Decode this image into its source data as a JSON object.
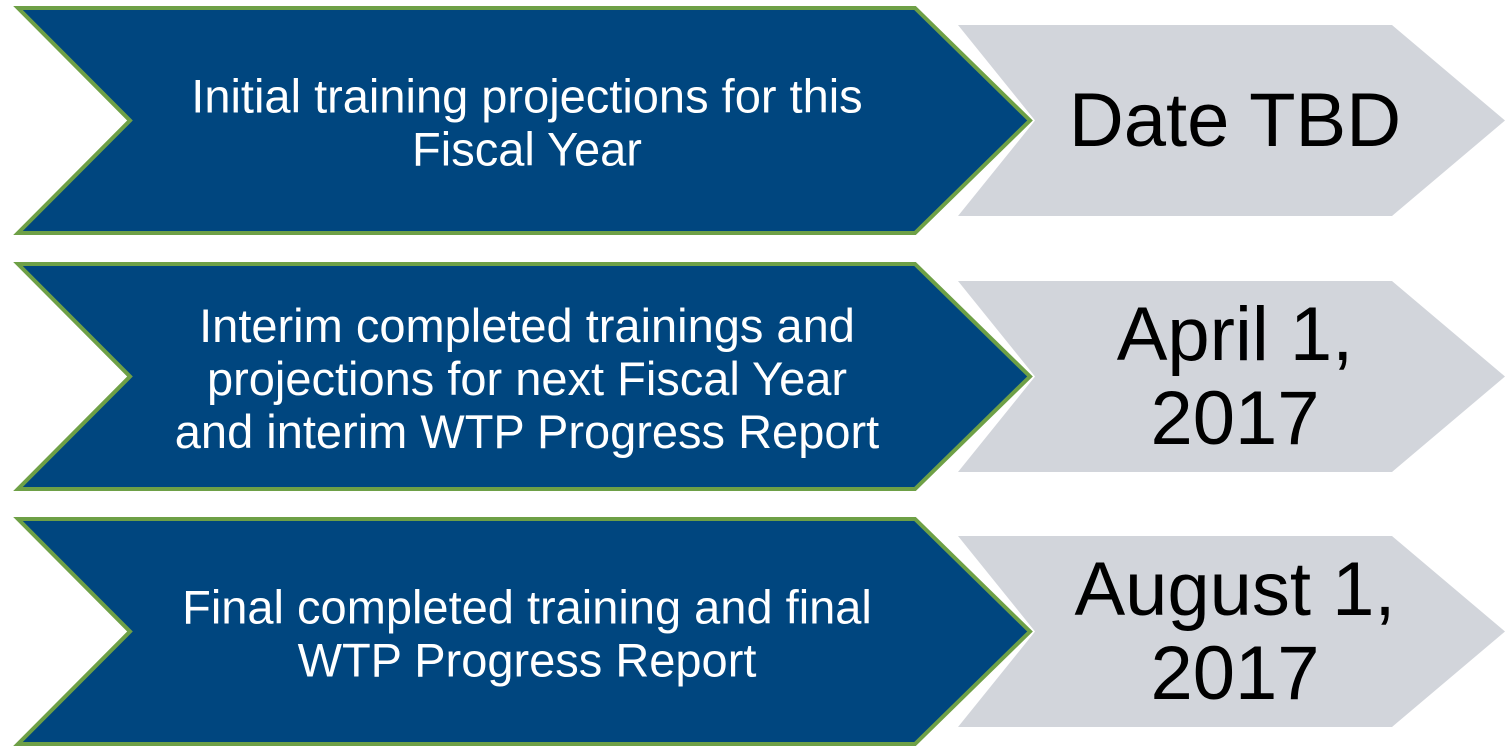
{
  "rows": [
    {
      "task_lines": [
        "Initial training projections for this",
        "Fiscal Year"
      ],
      "date_lines": [
        "Date TBD"
      ]
    },
    {
      "task_lines": [
        "Interim completed trainings and",
        "projections for next Fiscal Year",
        "and interim WTP Progress Report"
      ],
      "date_lines": [
        "April 1,",
        "2017"
      ]
    },
    {
      "task_lines": [
        "Final completed training and final",
        "WTP Progress Report"
      ],
      "date_lines": [
        "August 1,",
        "2017"
      ]
    }
  ]
}
